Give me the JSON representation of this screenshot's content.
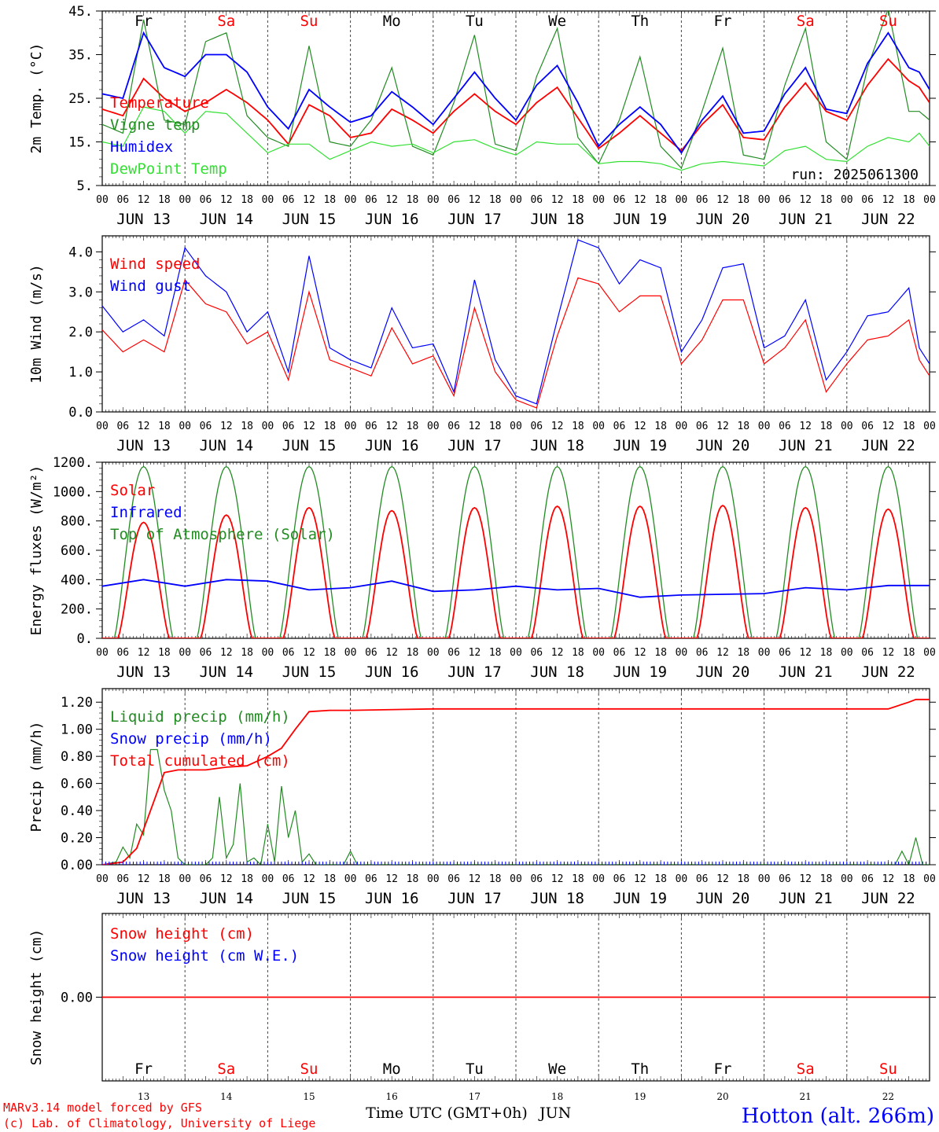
{
  "days": [
    {
      "abbr": "Fr",
      "date_label": "JUN 13",
      "day_num": "13",
      "weekend": false
    },
    {
      "abbr": "Sa",
      "date_label": "JUN 14",
      "day_num": "14",
      "weekend": true
    },
    {
      "abbr": "Su",
      "date_label": "JUN 15",
      "day_num": "15",
      "weekend": true
    },
    {
      "abbr": "Mo",
      "date_label": "JUN 16",
      "day_num": "16",
      "weekend": false
    },
    {
      "abbr": "Tu",
      "date_label": "JUN 17",
      "day_num": "17",
      "weekend": false
    },
    {
      "abbr": "We",
      "date_label": "JUN 18",
      "day_num": "18",
      "weekend": false
    },
    {
      "abbr": "Th",
      "date_label": "JUN 19",
      "day_num": "19",
      "weekend": false
    },
    {
      "abbr": "Fr",
      "date_label": "JUN 20",
      "day_num": "20",
      "weekend": false
    },
    {
      "abbr": "Sa",
      "date_label": "JUN 21",
      "day_num": "21",
      "weekend": true
    },
    {
      "abbr": "Su",
      "date_label": "JUN 22",
      "day_num": "22",
      "weekend": true
    }
  ],
  "hour_ticks": [
    "00",
    "06",
    "12",
    "18"
  ],
  "run_label": "run: 2025061300",
  "footer": {
    "model_line": "MARv3.14 model forced by GFS",
    "credit_line": "(c) Lab. of Climatology, University of Liege",
    "time_axis": "Time UTC (GMT+0h)",
    "month": "JUN",
    "station": "Hotton (alt. 266m)"
  },
  "colors": {
    "red": "#ff0000",
    "green": "#228b22",
    "blue": "#0000ff",
    "lime": "#33e033",
    "weekend": "#ff0000",
    "weekday": "#000000"
  },
  "chart_data": [
    {
      "type": "line",
      "ylabel": "2m Temp. (°C)",
      "ylim": [
        5,
        45
      ],
      "yticks": [
        "5.",
        "15.",
        "25.",
        "35.",
        "45."
      ],
      "x_unit": "hours since JUN 13 00 UTC",
      "legend": [
        "Temperature",
        "Vigne temp",
        "Humidex",
        "DewPoint Temp"
      ],
      "series": [
        {
          "name": "Temperature",
          "color": "red",
          "x": [
            0,
            6,
            12,
            18,
            24,
            30,
            36,
            42,
            48,
            54,
            60,
            66,
            72,
            78,
            84,
            90,
            96,
            102,
            108,
            114,
            120,
            126,
            132,
            138,
            144,
            150,
            156,
            162,
            168,
            174,
            180,
            186,
            192,
            198,
            204,
            210,
            216,
            222,
            228,
            234,
            237,
            240
          ],
          "y": [
            22.5,
            21,
            29.5,
            25,
            22,
            24,
            27,
            24,
            20,
            14.5,
            23.5,
            21,
            16,
            17,
            22.5,
            20,
            17,
            22,
            26,
            22,
            19,
            24,
            27.5,
            20.5,
            13.5,
            17,
            21,
            17,
            13,
            19,
            23.5,
            16,
            15.5,
            23,
            28.5,
            22,
            20,
            28,
            34,
            29,
            27.5,
            24
          ]
        },
        {
          "name": "Vigne temp",
          "color": "green",
          "x": [
            0,
            6,
            12,
            18,
            24,
            30,
            36,
            42,
            48,
            54,
            60,
            66,
            72,
            78,
            84,
            90,
            96,
            102,
            108,
            114,
            120,
            126,
            132,
            138,
            144,
            150,
            156,
            162,
            168,
            174,
            180,
            186,
            192,
            198,
            204,
            210,
            216,
            222,
            228,
            234,
            237,
            240
          ],
          "y": [
            19,
            17,
            43,
            20,
            19,
            38,
            40,
            21,
            16,
            14,
            37,
            15,
            14,
            20,
            32,
            14,
            12,
            24,
            39.5,
            14.5,
            13,
            30,
            41,
            16,
            10,
            20,
            34.5,
            14,
            9,
            22,
            36.5,
            12,
            11,
            28,
            41,
            15,
            11,
            32,
            45.5,
            22,
            22,
            20
          ]
        },
        {
          "name": "Humidex",
          "color": "blue",
          "x": [
            0,
            6,
            12,
            18,
            24,
            30,
            36,
            42,
            48,
            54,
            60,
            66,
            72,
            78,
            84,
            90,
            96,
            102,
            108,
            114,
            120,
            126,
            132,
            138,
            144,
            150,
            156,
            162,
            168,
            174,
            180,
            186,
            192,
            198,
            204,
            210,
            216,
            222,
            228,
            234,
            237,
            240
          ],
          "y": [
            26,
            25,
            40,
            32,
            30,
            35,
            35,
            31,
            23,
            18,
            27,
            23,
            19.5,
            21,
            26.5,
            23,
            19,
            25,
            31,
            25,
            20,
            28,
            32.5,
            24,
            14,
            19,
            23,
            19,
            12.5,
            20,
            25.5,
            17,
            17.5,
            26,
            32,
            22.5,
            21.5,
            33,
            40,
            32,
            31,
            27
          ]
        },
        {
          "name": "DewPoint Temp",
          "color": "lime",
          "x": [
            0,
            6,
            12,
            18,
            24,
            30,
            36,
            42,
            48,
            54,
            60,
            66,
            72,
            78,
            84,
            90,
            96,
            102,
            108,
            114,
            120,
            126,
            132,
            138,
            144,
            150,
            156,
            162,
            168,
            174,
            180,
            186,
            192,
            198,
            204,
            210,
            216,
            222,
            228,
            234,
            237,
            240
          ],
          "y": [
            15,
            14,
            23,
            22,
            17,
            22,
            21.5,
            17,
            12.5,
            14.5,
            14.5,
            11,
            13,
            15,
            14,
            14.5,
            12.5,
            15,
            15.5,
            13.5,
            12,
            15,
            14.5,
            14.5,
            10,
            10.5,
            10.5,
            10,
            8.5,
            10,
            10.5,
            10,
            9.5,
            13,
            14,
            11,
            10.5,
            14,
            16,
            15,
            17,
            14
          ]
        }
      ]
    },
    {
      "type": "line",
      "ylabel": "10m Wind (m/s)",
      "ylim": [
        0,
        4.4
      ],
      "yticks": [
        "0.0",
        "1.0",
        "2.0",
        "3.0",
        "4.0"
      ],
      "legend": [
        "Wind speed",
        "Wind gust"
      ],
      "series": [
        {
          "name": "Wind speed",
          "color": "red",
          "x": [
            0,
            6,
            12,
            18,
            24,
            30,
            36,
            42,
            48,
            54,
            60,
            66,
            72,
            78,
            84,
            90,
            96,
            102,
            108,
            114,
            120,
            126,
            132,
            138,
            144,
            150,
            156,
            162,
            168,
            174,
            180,
            186,
            192,
            198,
            204,
            210,
            216,
            222,
            228,
            234,
            237,
            240
          ],
          "y": [
            2.05,
            1.5,
            1.8,
            1.5,
            3.3,
            2.7,
            2.5,
            1.7,
            2.0,
            0.8,
            3.0,
            1.3,
            1.1,
            0.9,
            2.1,
            1.2,
            1.4,
            0.4,
            2.6,
            1.0,
            0.3,
            0.1,
            1.9,
            3.35,
            3.2,
            2.5,
            2.9,
            2.9,
            1.2,
            1.8,
            2.8,
            2.8,
            1.2,
            1.6,
            2.3,
            0.5,
            1.2,
            1.8,
            1.9,
            2.3,
            1.3,
            0.9
          ]
        },
        {
          "name": "Wind gust",
          "color": "blue",
          "x": [
            0,
            6,
            12,
            18,
            24,
            30,
            36,
            42,
            48,
            54,
            60,
            66,
            72,
            78,
            84,
            90,
            96,
            102,
            108,
            114,
            120,
            126,
            132,
            138,
            144,
            150,
            156,
            162,
            168,
            174,
            180,
            186,
            192,
            198,
            204,
            210,
            216,
            222,
            228,
            234,
            237,
            240
          ],
          "y": [
            2.65,
            2.0,
            2.3,
            1.9,
            4.1,
            3.4,
            3.0,
            2.0,
            2.5,
            1.0,
            3.9,
            1.6,
            1.3,
            1.1,
            2.6,
            1.6,
            1.7,
            0.5,
            3.3,
            1.3,
            0.4,
            0.2,
            2.3,
            4.3,
            4.1,
            3.2,
            3.8,
            3.6,
            1.5,
            2.3,
            3.6,
            3.7,
            1.6,
            1.9,
            2.8,
            0.8,
            1.5,
            2.4,
            2.5,
            3.1,
            1.6,
            1.2
          ]
        }
      ]
    },
    {
      "type": "line",
      "ylabel": "Energy fluxes (W/m²)",
      "ylim": [
        0,
        1200
      ],
      "yticks": [
        "0.",
        "200.",
        "400.",
        "600.",
        "800.",
        "1000.",
        "1200."
      ],
      "legend": [
        "Solar",
        "Infrared",
        "Top of Atmosphere (Solar)"
      ],
      "daily_peaks": {
        "Top of Atmosphere (Solar)": [
          1170,
          1170,
          1170,
          1170,
          1170,
          1170,
          1170,
          1170,
          1170,
          1170
        ],
        "Solar": [
          790,
          840,
          890,
          870,
          890,
          900,
          900,
          905,
          890,
          880
        ]
      },
      "series": [
        {
          "name": "Infrared",
          "color": "blue",
          "x": [
            0,
            12,
            24,
            36,
            48,
            60,
            72,
            84,
            96,
            108,
            120,
            132,
            144,
            156,
            168,
            180,
            192,
            204,
            216,
            228,
            240
          ],
          "y": [
            355,
            400,
            355,
            400,
            390,
            330,
            345,
            390,
            320,
            330,
            355,
            330,
            340,
            280,
            295,
            300,
            305,
            345,
            330,
            360,
            360
          ]
        }
      ]
    },
    {
      "type": "line",
      "ylabel": "Precip (mm/h)",
      "ylim": [
        0,
        1.3
      ],
      "yticks": [
        "0.00",
        "0.20",
        "0.40",
        "0.60",
        "0.80",
        "1.00",
        "1.20"
      ],
      "legend": [
        "Liquid precip (mm/h)",
        "Snow precip (mm/h)",
        "Total cumulated (cm)"
      ],
      "series": [
        {
          "name": "Liquid precip (mm/h)",
          "color": "green",
          "x": [
            0,
            4,
            6,
            8,
            10,
            12,
            14,
            16,
            18,
            20,
            22,
            24,
            26,
            30,
            32,
            34,
            36,
            38,
            40,
            42,
            44,
            46,
            48,
            50,
            52,
            54,
            56,
            58,
            60,
            62,
            70,
            72,
            74,
            76,
            200,
            202,
            204,
            206,
            208,
            210,
            212,
            220,
            230,
            232,
            234,
            236,
            238,
            240
          ],
          "y": [
            0,
            0.02,
            0.13,
            0.05,
            0.3,
            0.22,
            0.85,
            0.85,
            0.55,
            0.4,
            0.05,
            0,
            0,
            0,
            0.05,
            0.5,
            0.05,
            0.15,
            0.6,
            0.02,
            0.05,
            0,
            0.3,
            0.02,
            0.58,
            0.2,
            0.4,
            0.02,
            0.08,
            0,
            0,
            0.1,
            0,
            0,
            0,
            0,
            0,
            0,
            0,
            0,
            0,
            0,
            0,
            0.1,
            0,
            0.2,
            0,
            0
          ]
        },
        {
          "name": "Total cumulated (cm)",
          "color": "red",
          "x": [
            0,
            6,
            10,
            14,
            18,
            22,
            30,
            36,
            42,
            48,
            52,
            56,
            60,
            66,
            72,
            96,
            120,
            144,
            168,
            192,
            216,
            228,
            234,
            236,
            240
          ],
          "y": [
            0,
            0.02,
            0.12,
            0.4,
            0.68,
            0.7,
            0.7,
            0.72,
            0.73,
            0.8,
            0.86,
            1.0,
            1.13,
            1.14,
            1.14,
            1.15,
            1.15,
            1.15,
            1.15,
            1.15,
            1.15,
            1.15,
            1.2,
            1.22,
            1.22
          ]
        }
      ]
    },
    {
      "type": "line",
      "ylabel": "Snow height (cm)",
      "ylim": [
        -1,
        1
      ],
      "yticks": [
        "0.00"
      ],
      "legend": [
        "Snow height (cm)",
        "Snow height (cm W.E.)"
      ],
      "series": [
        {
          "name": "Snow height (cm)",
          "color": "red",
          "x": [
            0,
            240
          ],
          "y": [
            0,
            0
          ]
        }
      ]
    }
  ]
}
